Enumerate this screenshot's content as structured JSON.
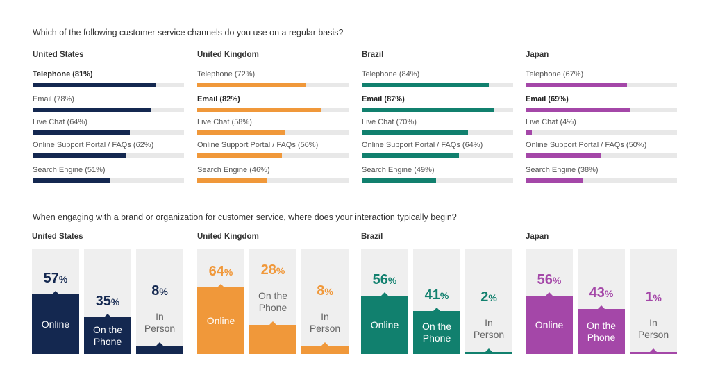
{
  "question1": "Which of the following customer service channels do you use on a regular basis?",
  "question2": "When engaging with a brand or organization for customer service, where does your interaction typically begin?",
  "chart_data": [
    {
      "type": "bar",
      "orientation": "horizontal",
      "title": "Which of the following customer service channels do you use on a regular basis?",
      "xlim": [
        0,
        100
      ],
      "panels": [
        {
          "country": "United States",
          "color": "#142850",
          "bars": [
            {
              "label": "Telephone (81%)",
              "value": 81,
              "bold": true
            },
            {
              "label": "Email (78%)",
              "value": 78,
              "bold": false
            },
            {
              "label": "Live Chat (64%)",
              "value": 64,
              "bold": false
            },
            {
              "label": "Online Support Portal / FAQs (62%)",
              "value": 62,
              "bold": false
            },
            {
              "label": "Search Engine (51%)",
              "value": 51,
              "bold": false
            }
          ]
        },
        {
          "country": "United Kingdom",
          "color": "#f0983a",
          "bars": [
            {
              "label": "Telephone (72%)",
              "value": 72,
              "bold": false
            },
            {
              "label": "Email (82%)",
              "value": 82,
              "bold": true
            },
            {
              "label": "Live Chat (58%)",
              "value": 58,
              "bold": false
            },
            {
              "label": "Online Support Portal / FAQs (56%)",
              "value": 56,
              "bold": false
            },
            {
              "label": "Search Engine (46%)",
              "value": 46,
              "bold": false
            }
          ]
        },
        {
          "country": "Brazil",
          "color": "#11806e",
          "bars": [
            {
              "label": "Telephone (84%)",
              "value": 84,
              "bold": false
            },
            {
              "label": "Email (87%)",
              "value": 87,
              "bold": true
            },
            {
              "label": "Live Chat (70%)",
              "value": 70,
              "bold": false
            },
            {
              "label": "Online Support Portal / FAQs (64%)",
              "value": 64,
              "bold": false
            },
            {
              "label": "Search Engine (49%)",
              "value": 49,
              "bold": false
            }
          ]
        },
        {
          "country": "Japan",
          "color": "#a447a8",
          "bars": [
            {
              "label": "Telephone (67%)",
              "value": 67,
              "bold": false
            },
            {
              "label": "Email (69%)",
              "value": 69,
              "bold": true
            },
            {
              "label": "Live Chat (4%)",
              "value": 4,
              "bold": false
            },
            {
              "label": "Online Support Portal / FAQs (50%)",
              "value": 50,
              "bold": false
            },
            {
              "label": "Search Engine (38%)",
              "value": 38,
              "bold": false
            }
          ]
        }
      ]
    },
    {
      "type": "bar",
      "orientation": "vertical",
      "title": "When engaging with a brand or organization for customer service, where does your interaction typically begin?",
      "ylim": [
        0,
        100
      ],
      "categories": [
        "Online",
        "On the Phone",
        "In Person"
      ],
      "panels": [
        {
          "country": "United States",
          "color": "#142850",
          "values": [
            57,
            35,
            8
          ]
        },
        {
          "country": "United Kingdom",
          "color": "#f0983a",
          "values": [
            64,
            28,
            8
          ]
        },
        {
          "country": "Brazil",
          "color": "#11806e",
          "values": [
            56,
            41,
            2
          ]
        },
        {
          "country": "Japan",
          "color": "#a447a8",
          "values": [
            56,
            43,
            1
          ]
        }
      ]
    }
  ]
}
